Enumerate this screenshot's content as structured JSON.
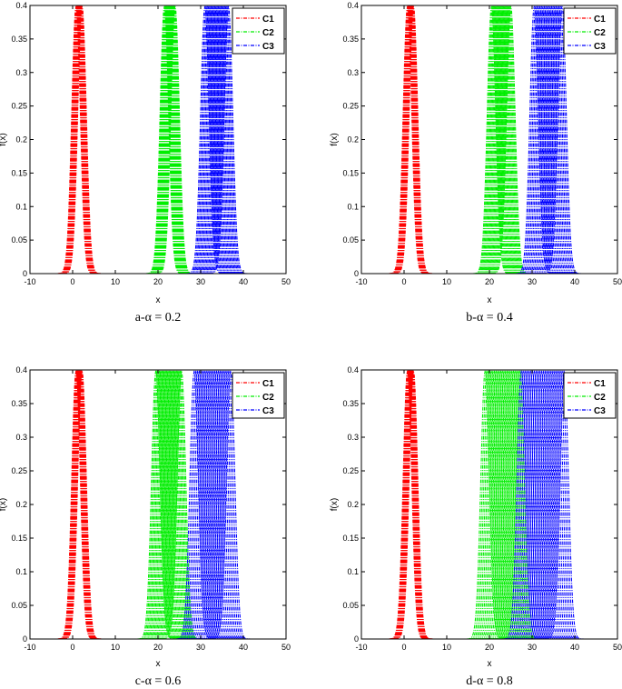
{
  "colors": {
    "C1": "#ff0000",
    "C2": "#00ee00",
    "C3": "#0000ff",
    "axis": "#000000"
  },
  "chart_data": [
    {
      "type": "line",
      "caption": "a-α = 0.2",
      "xlabel": "x",
      "ylabel": "f(x)",
      "xlim": [
        -10,
        50
      ],
      "ylim": [
        0,
        0.4
      ],
      "xticks": [
        "-10",
        "0",
        "10",
        "20",
        "30",
        "40",
        "50"
      ],
      "yticks": [
        "0",
        "0.05",
        "0.1",
        "0.15",
        "0.2",
        "0.25",
        "0.3",
        "0.35",
        "0.4"
      ],
      "legend": {
        "position": "top-right",
        "entries": [
          "C1",
          "C2",
          "C3"
        ]
      },
      "series": [
        {
          "name": "C1",
          "center_range": [
            0.8,
            2.2
          ],
          "sigma": 1.0,
          "curves": 20
        },
        {
          "name": "C2",
          "center_range": [
            21.5,
            24.0
          ],
          "sigma": 1.0,
          "curves": 20
        },
        {
          "name": "C3",
          "center_range": [
            31.0,
            36.5
          ],
          "sigma": 1.0,
          "curves": 20
        }
      ]
    },
    {
      "type": "line",
      "caption": "b-α = 0.4",
      "xlabel": "x",
      "ylabel": "f(x)",
      "xlim": [
        -10,
        50
      ],
      "ylim": [
        0,
        0.4
      ],
      "xticks": [
        "-10",
        "0",
        "10",
        "20",
        "30",
        "40",
        "50"
      ],
      "yticks": [
        "0",
        "0.05",
        "0.1",
        "0.15",
        "0.2",
        "0.25",
        "0.3",
        "0.35",
        "0.4"
      ],
      "legend": {
        "position": "top-right",
        "entries": [
          "C1",
          "C2",
          "C3"
        ]
      },
      "series": [
        {
          "name": "C1",
          "center_range": [
            0.8,
            2.2
          ],
          "sigma": 1.0,
          "curves": 20
        },
        {
          "name": "C2",
          "center_range": [
            20.5,
            25.0
          ],
          "sigma": 1.0,
          "curves": 20
        },
        {
          "name": "C3",
          "center_range": [
            30.5,
            37.0
          ],
          "sigma": 1.0,
          "curves": 20
        }
      ]
    },
    {
      "type": "line",
      "caption": "c-α = 0.6",
      "xlabel": "x",
      "ylabel": "f(x)",
      "xlim": [
        -10,
        50
      ],
      "ylim": [
        0,
        0.4
      ],
      "xticks": [
        "-10",
        "0",
        "10",
        "20",
        "30",
        "40",
        "50"
      ],
      "yticks": [
        "0",
        "0.05",
        "0.1",
        "0.15",
        "0.2",
        "0.25",
        "0.3",
        "0.35",
        "0.4"
      ],
      "legend": {
        "position": "top-right",
        "entries": [
          "C1",
          "C2",
          "C3"
        ]
      },
      "series": [
        {
          "name": "C1",
          "center_range": [
            0.8,
            2.2
          ],
          "sigma": 1.0,
          "curves": 20
        },
        {
          "name": "C2",
          "center_range": [
            19.5,
            25.5
          ],
          "sigma": 1.0,
          "curves": 22
        },
        {
          "name": "C3",
          "center_range": [
            28.5,
            37.0
          ],
          "sigma": 1.0,
          "curves": 22
        }
      ]
    },
    {
      "type": "line",
      "caption": "d-α = 0.8",
      "xlabel": "x",
      "ylabel": "f(x)",
      "xlim": [
        -10,
        50
      ],
      "ylim": [
        0,
        0.4
      ],
      "xticks": [
        "-10",
        "0",
        "10",
        "20",
        "30",
        "40",
        "50"
      ],
      "yticks": [
        "0",
        "0.05",
        "0.1",
        "0.15",
        "0.2",
        "0.25",
        "0.3",
        "0.35",
        "0.4"
      ],
      "legend": {
        "position": "top-right",
        "entries": [
          "C1",
          "C2",
          "C3"
        ]
      },
      "series": [
        {
          "name": "C1",
          "center_range": [
            0.8,
            2.2
          ],
          "sigma": 1.0,
          "curves": 20
        },
        {
          "name": "C2",
          "center_range": [
            19.0,
            27.5
          ],
          "sigma": 1.0,
          "curves": 24
        },
        {
          "name": "C3",
          "center_range": [
            27.5,
            37.5
          ],
          "sigma": 1.0,
          "curves": 24
        }
      ]
    }
  ]
}
